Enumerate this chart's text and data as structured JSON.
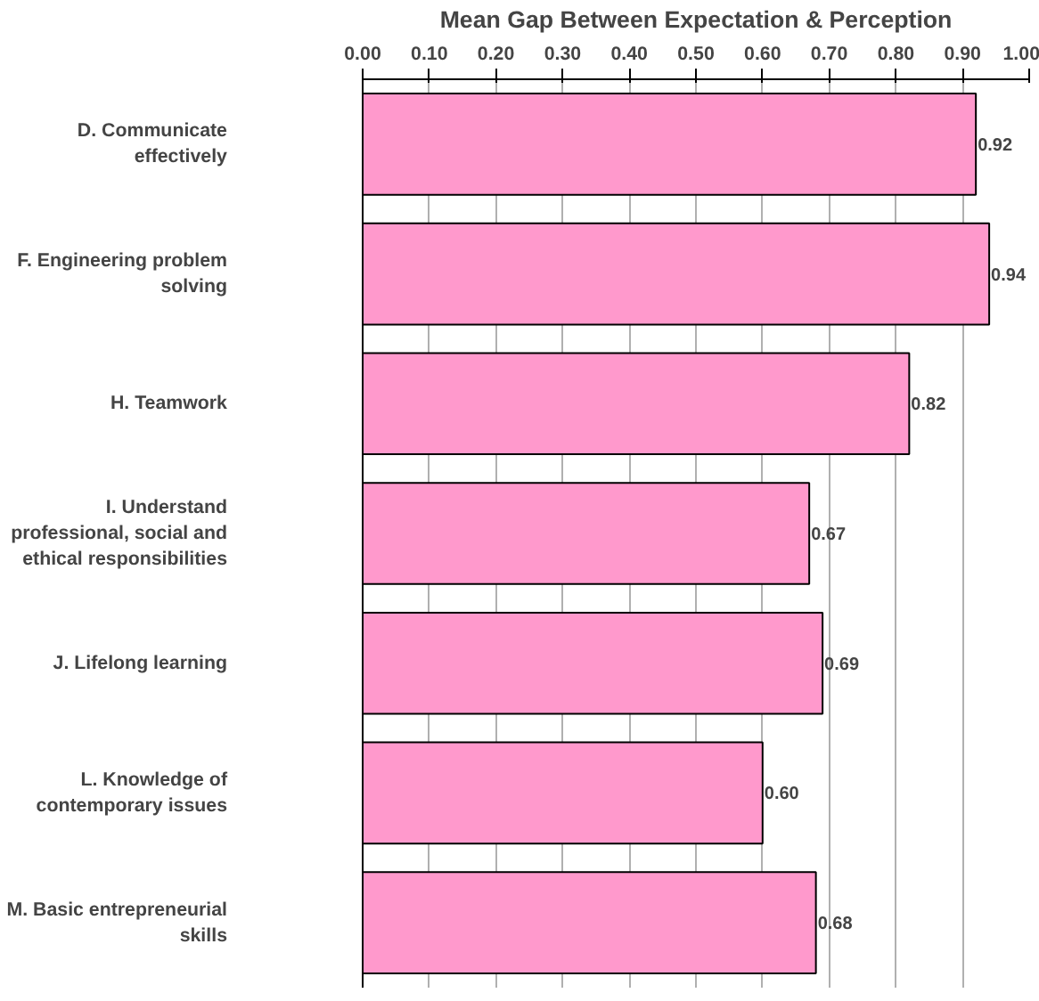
{
  "chart_data": {
    "type": "bar",
    "orientation": "horizontal",
    "xlabel": "Mean Gap Between Expectation & Perception",
    "categories": [
      "D. Communicate effectively",
      "F. Engineering problem solving",
      "H. Teamwork",
      "I. Understand professional, social and ethical responsibilities",
      "J. Lifelong learning",
      "L. Knowledge of contemporary issues",
      "M. Basic entrepreneurial skills"
    ],
    "values": [
      0.92,
      0.94,
      0.82,
      0.67,
      0.69,
      0.6,
      0.68
    ],
    "value_labels": [
      "0.92",
      "0.94",
      "0.82",
      "0.67",
      "0.69",
      "0.60",
      "0.68"
    ],
    "color": "#ff99cc",
    "xlim": [
      0,
      1
    ],
    "xticks": [
      {
        "value": 0,
        "label": "0.00"
      },
      {
        "value": 0.1,
        "label": "0.10"
      },
      {
        "value": 0.2,
        "label": "0.20"
      },
      {
        "value": 0.3,
        "label": "0.30"
      },
      {
        "value": 0.4,
        "label": "0.40"
      },
      {
        "value": 0.5,
        "label": "0.50"
      },
      {
        "value": 0.6,
        "label": "0.60"
      },
      {
        "value": 0.7,
        "label": "0.70"
      },
      {
        "value": 0.8,
        "label": "0.80"
      },
      {
        "value": 0.9,
        "label": "0.90"
      },
      {
        "value": 1.0,
        "label": "1.00"
      }
    ],
    "grid": "x"
  }
}
